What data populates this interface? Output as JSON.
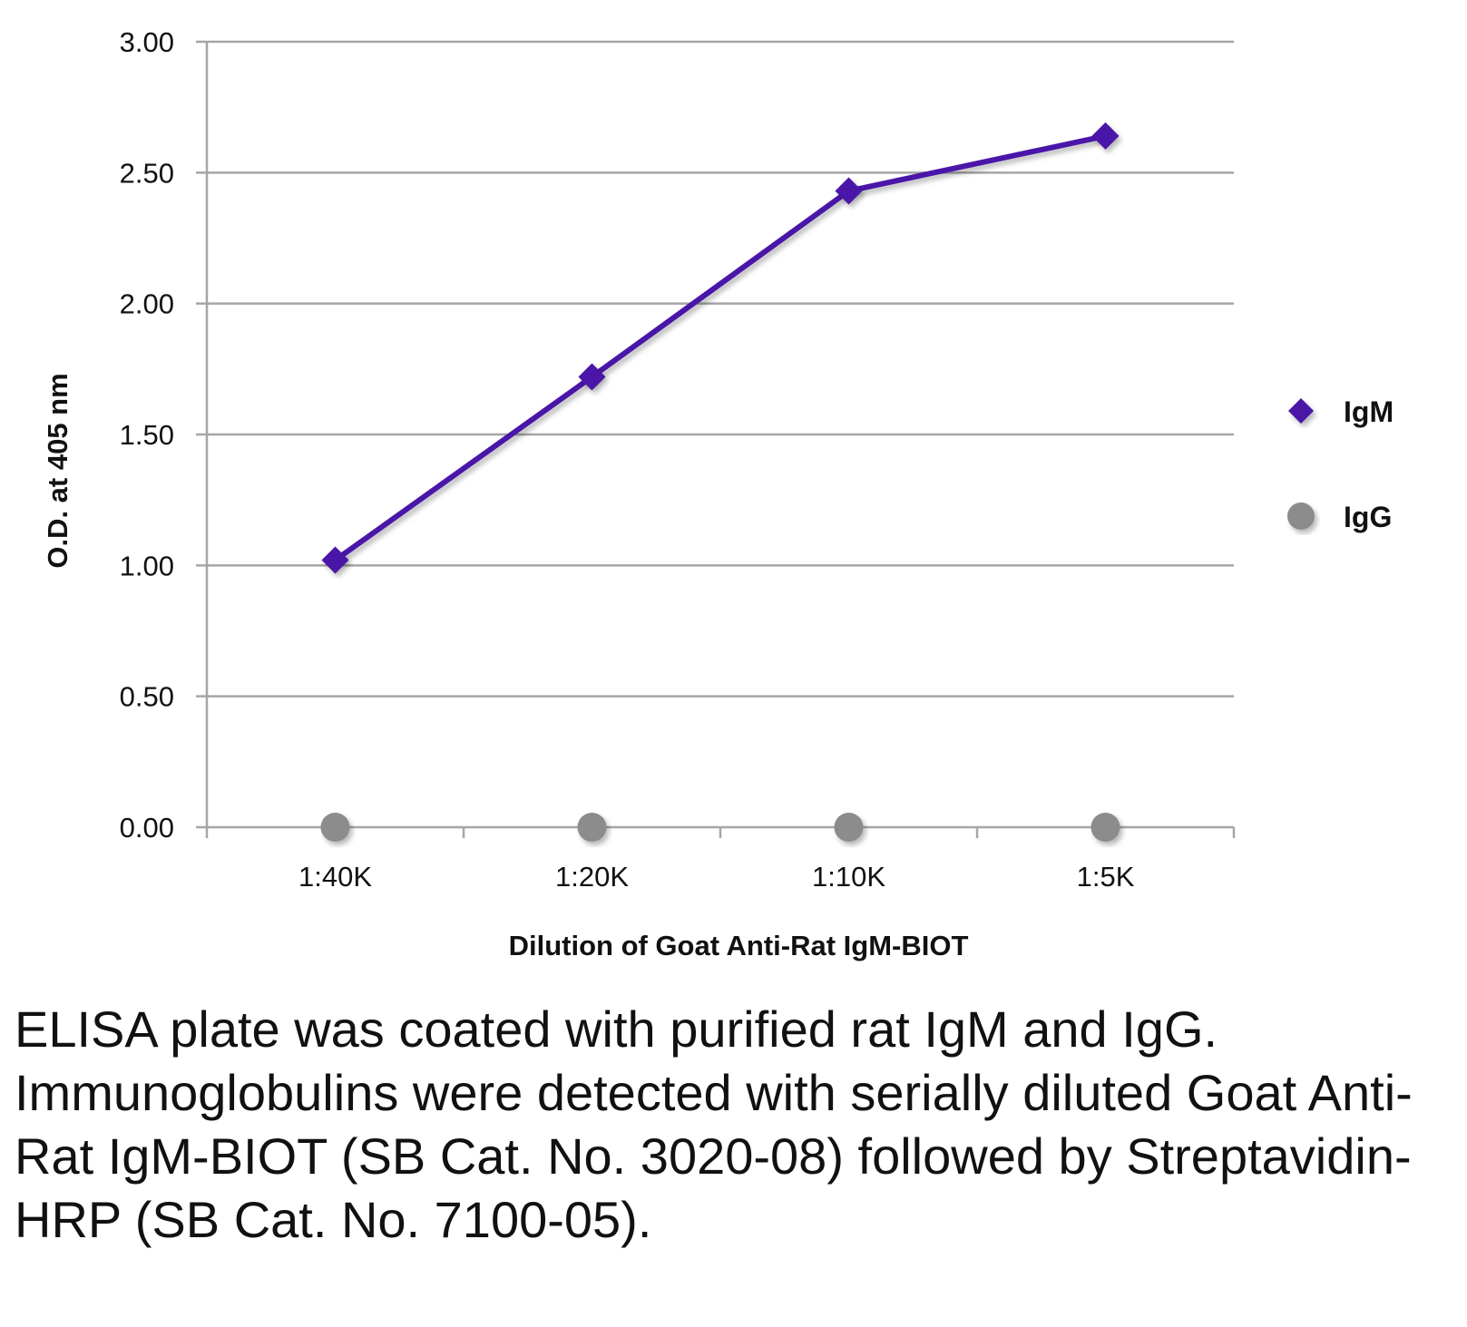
{
  "chart_data": {
    "type": "line",
    "title": "",
    "xlabel": "Dilution of Goat Anti-Rat IgM-BIOT",
    "ylabel": "O.D. at 405 nm",
    "categories": [
      "1:40K",
      "1:20K",
      "1:10K",
      "1:5K"
    ],
    "ylim": [
      0,
      3
    ],
    "yticks": [
      0,
      0.5,
      1,
      1.5,
      2,
      2.5,
      3
    ],
    "ytick_labels": [
      "0.00",
      "0.50",
      "1.00",
      "1.50",
      "2.00",
      "2.50",
      "3.00"
    ],
    "grid": true,
    "legend": "right",
    "series": [
      {
        "name": "IgM",
        "values": [
          1.02,
          1.72,
          2.43,
          2.64
        ],
        "color": "#4a12a8",
        "marker": "diamond"
      },
      {
        "name": "IgG",
        "values": [
          0.0,
          0.0,
          0.0,
          0.0
        ],
        "color": "#8c8c8c",
        "marker": "circle"
      }
    ]
  },
  "caption": "ELISA plate was coated with purified rat IgM and IgG.  Immunoglobulins were detected with serially diluted Goat Anti-Rat IgM-BIOT (SB Cat. No. 3020-08) followed by Streptavidin-HRP (SB Cat. No. 7100-05)."
}
